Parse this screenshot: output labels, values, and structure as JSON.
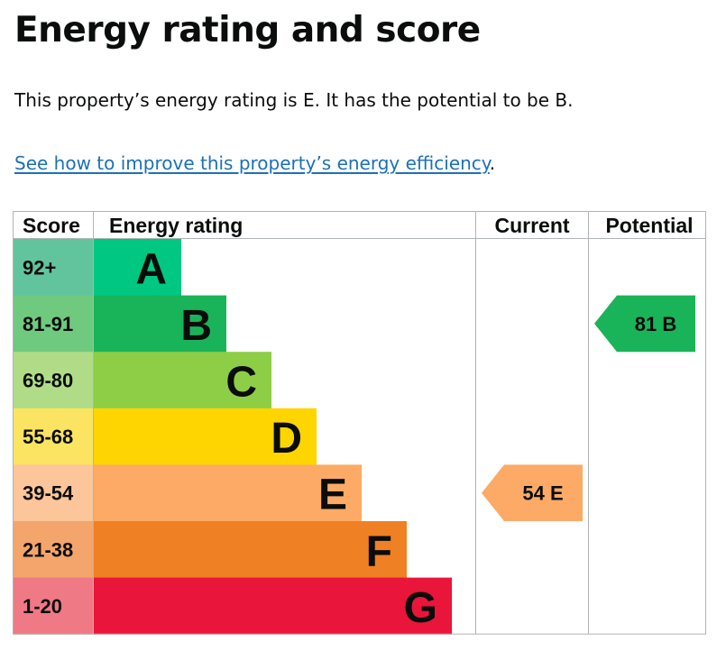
{
  "title": "Energy rating and score",
  "summary": "This property’s energy rating is E. It has the potential to be B.",
  "link": {
    "text": "See how to improve this property’s energy efficiency",
    "suffix": "."
  },
  "chart_data": {
    "type": "bar",
    "headers": {
      "score": "Score",
      "rating": "Energy rating",
      "current": "Current",
      "potential": "Potential"
    },
    "bands": [
      {
        "score": "92+",
        "letter": "A",
        "score_bg": "#62c49c",
        "color": "#00c781"
      },
      {
        "score": "81-91",
        "letter": "B",
        "score_bg": "#6fca7f",
        "color": "#19b459"
      },
      {
        "score": "69-80",
        "letter": "C",
        "score_bg": "#b0dc88",
        "color": "#8dce46"
      },
      {
        "score": "55-68",
        "letter": "D",
        "score_bg": "#fbe461",
        "color": "#ffd500"
      },
      {
        "score": "39-54",
        "letter": "E",
        "score_bg": "#fcc59a",
        "color": "#fcaa65"
      },
      {
        "score": "21-38",
        "letter": "F",
        "score_bg": "#f3a56b",
        "color": "#ef8023"
      },
      {
        "score": "1-20",
        "letter": "G",
        "score_bg": "#f07986",
        "color": "#e9153b"
      }
    ],
    "current": {
      "score": 54,
      "letter": "E",
      "color": "#fcaa65"
    },
    "potential": {
      "score": 81,
      "letter": "B",
      "color": "#19b459"
    }
  }
}
